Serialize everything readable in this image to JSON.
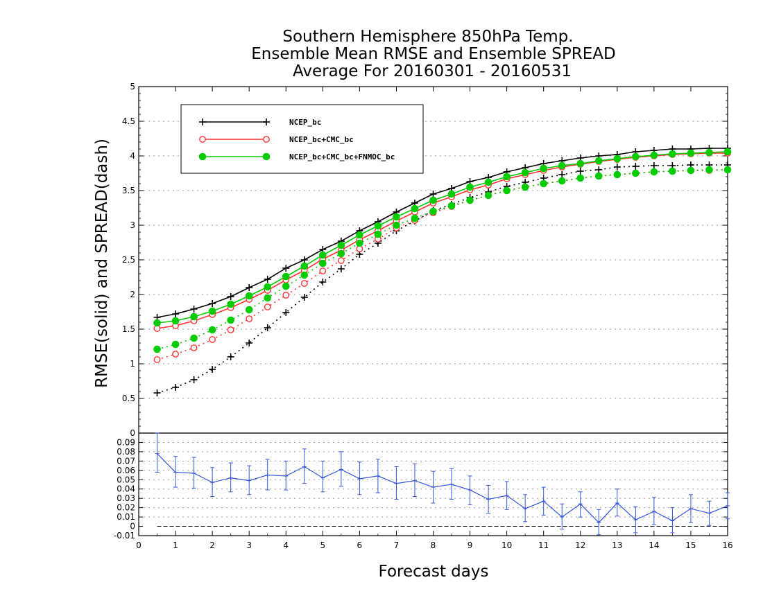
{
  "chart_data": [
    {
      "type": "line",
      "title": [
        "Southern Hemisphere 850hPa Temp.",
        "Ensemble Mean RMSE and Ensemble SPREAD",
        "Average For 20160301 - 20160531"
      ],
      "ylabel": "RMSE(solid) and SPREAD(dash)",
      "xlim": [
        0,
        16
      ],
      "ylim": [
        0,
        5
      ],
      "yticks": [
        "0.5",
        "1",
        "1.5",
        "2",
        "2.5",
        "3",
        "3.5",
        "4",
        "4.5",
        "5"
      ],
      "grid": true,
      "legend_position": "top-left",
      "x": [
        0.5,
        1,
        1.5,
        2,
        2.5,
        3,
        3.5,
        4,
        4.5,
        5,
        5.5,
        6,
        6.5,
        7,
        7.5,
        8,
        8.5,
        9,
        9.5,
        10,
        10.5,
        11,
        11.5,
        12,
        12.5,
        13,
        13.5,
        14,
        14.5,
        15,
        15.5,
        16
      ],
      "series": [
        {
          "name": "NCEP_bc",
          "color": "#000000",
          "marker": "plus",
          "rmse": [
            1.67,
            1.72,
            1.79,
            1.87,
            1.97,
            2.1,
            2.22,
            2.38,
            2.5,
            2.65,
            2.77,
            2.92,
            3.05,
            3.19,
            3.32,
            3.45,
            3.53,
            3.63,
            3.69,
            3.77,
            3.83,
            3.89,
            3.93,
            3.97,
            4.0,
            4.02,
            4.06,
            4.08,
            4.1,
            4.1,
            4.11,
            4.11
          ],
          "spread": [
            0.58,
            0.66,
            0.77,
            0.92,
            1.1,
            1.3,
            1.52,
            1.74,
            1.96,
            2.18,
            2.37,
            2.58,
            2.74,
            2.92,
            3.06,
            3.21,
            3.3,
            3.4,
            3.48,
            3.56,
            3.62,
            3.68,
            3.73,
            3.78,
            3.8,
            3.84,
            3.85,
            3.86,
            3.86,
            3.87,
            3.87,
            3.87
          ]
        },
        {
          "name": "NCEP_bc+CMC_bc",
          "color": "#ff3333",
          "marker": "open-circle",
          "rmse": [
            1.51,
            1.55,
            1.62,
            1.71,
            1.81,
            1.93,
            2.06,
            2.21,
            2.35,
            2.51,
            2.64,
            2.79,
            2.92,
            3.06,
            3.19,
            3.32,
            3.41,
            3.51,
            3.58,
            3.67,
            3.73,
            3.79,
            3.84,
            3.88,
            3.92,
            3.95,
            3.98,
            4.0,
            4.02,
            4.03,
            4.04,
            4.04
          ],
          "spread": [
            1.06,
            1.14,
            1.23,
            1.35,
            1.49,
            1.65,
            1.82,
            1.99,
            2.16,
            2.34,
            2.49,
            2.66,
            2.8,
            2.96,
            3.07,
            3.18,
            3.27,
            3.36,
            3.43,
            3.5,
            3.55,
            3.6,
            3.64,
            3.68,
            3.71,
            3.73,
            3.75,
            3.77,
            3.78,
            3.79,
            3.79,
            3.8
          ]
        },
        {
          "name": "NCEP_bc+CMC_bc+FNMOC_bc",
          "color": "#00cc00",
          "marker": "filled-circle",
          "rmse": [
            1.59,
            1.62,
            1.68,
            1.76,
            1.86,
            1.98,
            2.11,
            2.26,
            2.41,
            2.57,
            2.71,
            2.86,
            2.99,
            3.12,
            3.24,
            3.36,
            3.45,
            3.55,
            3.62,
            3.7,
            3.76,
            3.82,
            3.86,
            3.89,
            3.93,
            3.96,
            3.99,
            4.01,
            4.03,
            4.04,
            4.05,
            4.06
          ],
          "spread": [
            1.21,
            1.28,
            1.37,
            1.49,
            1.63,
            1.78,
            1.95,
            2.12,
            2.28,
            2.45,
            2.59,
            2.74,
            2.87,
            3.0,
            3.1,
            3.2,
            3.28,
            3.36,
            3.43,
            3.5,
            3.55,
            3.6,
            3.64,
            3.68,
            3.71,
            3.73,
            3.75,
            3.77,
            3.78,
            3.79,
            3.8,
            3.8
          ]
        }
      ]
    },
    {
      "type": "line",
      "xlabel": "Forecast days",
      "xlim": [
        0,
        16
      ],
      "xticks": [
        "0",
        "1",
        "2",
        "3",
        "4",
        "5",
        "6",
        "7",
        "8",
        "9",
        "10",
        "11",
        "12",
        "13",
        "14",
        "15",
        "16"
      ],
      "ylim": [
        -0.01,
        0.1
      ],
      "yticks": [
        "-0.01",
        "0",
        "0.01",
        "0.02",
        "0.03",
        "0.04",
        "0.05",
        "0.06",
        "0.07",
        "0.08",
        "0.09"
      ],
      "top_tick": "0",
      "color": "#3355dd",
      "zero_line": true,
      "x": [
        0.5,
        1,
        1.5,
        2,
        2.5,
        3,
        3.5,
        4,
        4.5,
        5,
        5.5,
        6,
        6.5,
        7,
        7.5,
        8,
        8.5,
        9,
        9.5,
        10,
        10.5,
        11,
        11.5,
        12,
        12.5,
        13,
        13.5,
        14,
        14.5,
        15,
        15.5,
        16
      ],
      "values": [
        0.078,
        0.058,
        0.057,
        0.047,
        0.052,
        0.049,
        0.055,
        0.054,
        0.064,
        0.052,
        0.061,
        0.051,
        0.054,
        0.046,
        0.049,
        0.042,
        0.045,
        0.039,
        0.029,
        0.033,
        0.019,
        0.027,
        0.01,
        0.024,
        0.004,
        0.025,
        0.007,
        0.016,
        0.006,
        0.019,
        0.014,
        0.022
      ],
      "error_low": [
        0.058,
        0.042,
        0.041,
        0.032,
        0.037,
        0.034,
        0.039,
        0.039,
        0.046,
        0.037,
        0.043,
        0.034,
        0.036,
        0.029,
        0.032,
        0.025,
        0.029,
        0.023,
        0.014,
        0.018,
        0.005,
        0.012,
        -0.003,
        0.01,
        -0.009,
        0.011,
        -0.007,
        0.002,
        -0.007,
        0.004,
        0.001,
        0.008
      ],
      "error_high": [
        0.1,
        0.075,
        0.074,
        0.063,
        0.068,
        0.065,
        0.072,
        0.07,
        0.083,
        0.07,
        0.08,
        0.069,
        0.072,
        0.064,
        0.067,
        0.059,
        0.062,
        0.054,
        0.044,
        0.048,
        0.034,
        0.042,
        0.024,
        0.037,
        0.018,
        0.04,
        0.021,
        0.031,
        0.02,
        0.034,
        0.027,
        0.036
      ]
    }
  ]
}
